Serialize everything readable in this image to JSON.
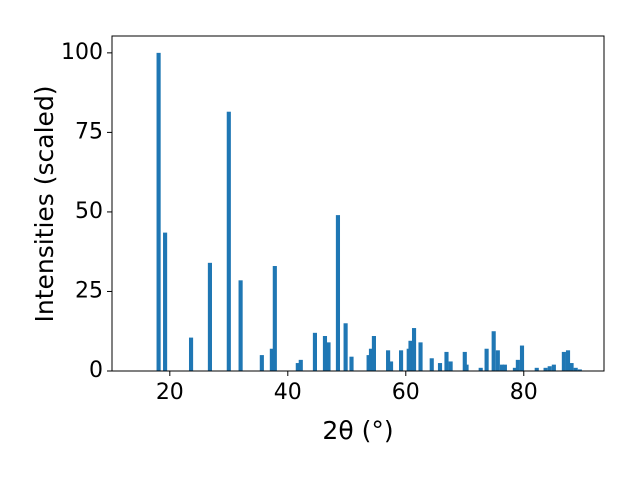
{
  "chart_data": {
    "type": "bar",
    "xlabel": "2θ (°)",
    "ylabel": "Intensities (scaled)",
    "color": "#1f77b4",
    "grid": false,
    "x": [
      18.1,
      19.2,
      23.6,
      26.8,
      30.0,
      32.0,
      35.6,
      37.3,
      37.8,
      41.7,
      42.2,
      44.6,
      46.3,
      46.9,
      48.5,
      49.8,
      50.8,
      53.7,
      54.1,
      54.6,
      57.0,
      57.5,
      59.2,
      60.5,
      60.8,
      61.4,
      62.5,
      64.4,
      65.8,
      66.9,
      67.6,
      70.0,
      70.3,
      72.7,
      73.7,
      74.9,
      75.6,
      76.3,
      76.8,
      78.5,
      79.0,
      79.7,
      82.2,
      83.7,
      84.4,
      85.1,
      86.8,
      87.5,
      88.1,
      88.8,
      89.5
    ],
    "values": [
      100,
      43.5,
      10.5,
      34,
      81.5,
      28.5,
      5,
      7,
      33,
      2.5,
      3.5,
      12,
      11,
      9,
      49,
      15,
      4.5,
      5,
      7,
      11,
      6.5,
      3,
      6.5,
      7,
      9.5,
      13.5,
      9,
      4,
      2.5,
      6,
      3,
      6,
      2,
      1,
      7,
      12.5,
      6.5,
      2,
      2,
      1,
      3.5,
      8,
      1,
      1,
      1.5,
      2,
      6,
      6.5,
      2.5,
      1,
      0.5
    ],
    "xlim": [
      10.2,
      93.6
    ],
    "ylim": [
      0,
      105.3
    ],
    "xticks": [
      20,
      40,
      60,
      80
    ],
    "yticks": [
      0,
      25,
      50,
      75,
      100
    ]
  }
}
